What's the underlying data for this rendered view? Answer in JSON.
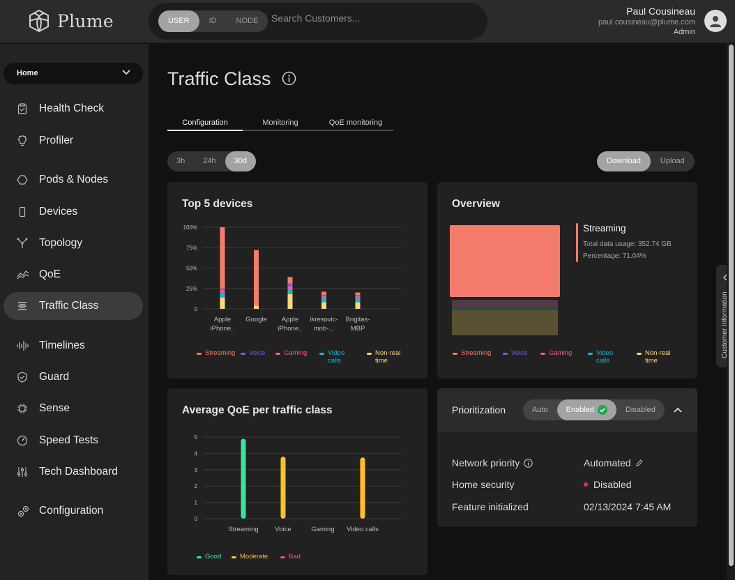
{
  "brand": {
    "name": "Plume"
  },
  "search": {
    "modes": [
      "USER",
      "ID",
      "NODE"
    ],
    "active_mode": "USER",
    "placeholder": "Search Customers..."
  },
  "user": {
    "name": "Paul Cousineau",
    "email": "paul.cousineau@plume.com",
    "role": "Admin"
  },
  "sidebar": {
    "location": "Home",
    "items": [
      {
        "label": "Health Check",
        "icon": "clipboard-icon"
      },
      {
        "label": "Profiler",
        "icon": "lightbulb-icon"
      },
      {
        "label": "Pods & Nodes",
        "icon": "hexagon-icon"
      },
      {
        "label": "Devices",
        "icon": "phone-icon"
      },
      {
        "label": "Topology",
        "icon": "topology-icon"
      },
      {
        "label": "QoE",
        "icon": "qoe-icon"
      },
      {
        "label": "Traffic Class",
        "icon": "stack-icon",
        "active": true
      },
      {
        "label": "Timelines",
        "icon": "waveform-icon"
      },
      {
        "label": "Guard",
        "icon": "shield-icon"
      },
      {
        "label": "Sense",
        "icon": "chip-icon"
      },
      {
        "label": "Speed Tests",
        "icon": "speedometer-icon"
      },
      {
        "label": "Tech Dashboard",
        "icon": "sliders-icon"
      },
      {
        "label": "Configuration",
        "icon": "gears-icon"
      }
    ]
  },
  "page": {
    "title": "Traffic Class",
    "tabs": [
      "Configuration",
      "Monitoring",
      "QoE monitoring"
    ],
    "active_tab": "Configuration",
    "time_ranges": [
      "3h",
      "24h",
      "30d"
    ],
    "active_time_range": "30d",
    "directions": [
      "Download",
      "Upload"
    ],
    "active_direction": "Download"
  },
  "colors": {
    "streaming": "#f47c6c",
    "voice": "#6a63f0",
    "gaming": "#f05a9a",
    "video_calls": "#1fb5d6",
    "non_real_time": "#ffd97a",
    "good": "#3de29a",
    "moderate": "#ffbe2e",
    "bad": "#f0508e"
  },
  "top_devices": {
    "title": "Top 5 devices",
    "legend": [
      "Streaming",
      "Voice",
      "Gaming",
      "Video calls",
      "Non-real time"
    ]
  },
  "overview": {
    "title": "Overview",
    "selected_class": "Streaming",
    "total_label": "Total data usage: 352.74 GB",
    "percentage_label": "Percentage: 71.04%",
    "legend": [
      "Streaming",
      "Voice",
      "Gaming",
      "Video calls",
      "Non-real time"
    ]
  },
  "qoe": {
    "title": "Average QoE per traffic class",
    "legend": [
      "Good",
      "Moderate",
      "Bad"
    ]
  },
  "prioritization": {
    "label": "Prioritization",
    "options": [
      "Auto",
      "Enabled",
      "Disabled"
    ],
    "active": "Enabled",
    "rows": [
      {
        "label": "Network priority",
        "value": "Automated"
      },
      {
        "label": "Home security",
        "value": "Disabled"
      },
      {
        "label": "Feature initialized",
        "value": "02/13/2024 7:45 AM"
      }
    ]
  },
  "side_panel": {
    "label": "Customer information"
  },
  "chart_data": [
    {
      "type": "bar",
      "title": "Top 5 devices",
      "stacked": true,
      "categories": [
        "Apple iPhone..",
        "Google",
        "Apple iPhone..",
        "ikresovic-mnb-...",
        "Brigitas-MBP"
      ],
      "ylim": [
        0,
        100
      ],
      "yticks": [
        "0",
        "25%",
        "50%",
        "75%",
        "100%"
      ],
      "series": [
        {
          "name": "Non-real time",
          "values": [
            14,
            4,
            18,
            8,
            8
          ]
        },
        {
          "name": "Video calls",
          "values": [
            5,
            0,
            5,
            5,
            5
          ]
        },
        {
          "name": "Gaming",
          "values": [
            4,
            0,
            5,
            3,
            3
          ]
        },
        {
          "name": "Voice",
          "values": [
            2,
            0,
            3,
            1,
            1
          ]
        },
        {
          "name": "Streaming",
          "values": [
            75,
            68,
            8,
            4,
            3
          ]
        }
      ],
      "legend_position": "bottom"
    },
    {
      "type": "bar",
      "title": "Average QoE per traffic class",
      "categories": [
        "Streaming",
        "Voice",
        "Gaming",
        "Video calls"
      ],
      "values": [
        4.9,
        3.8,
        0,
        3.75
      ],
      "bar_classes": [
        "good",
        "moderate",
        "none",
        "moderate"
      ],
      "ylim": [
        0,
        5
      ],
      "yticks": [
        "0",
        "1",
        "2",
        "3",
        "4",
        "5"
      ],
      "legend_position": "bottom"
    }
  ]
}
